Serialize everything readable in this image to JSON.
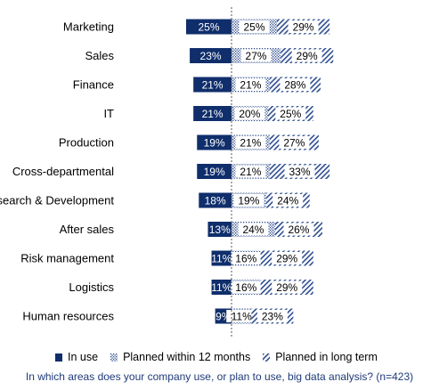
{
  "chart_data": {
    "type": "bar",
    "categories": [
      "Marketing",
      "Sales",
      "Finance",
      "IT",
      "Production",
      "Cross-departmental",
      "search & Development",
      "After sales",
      "Risk management",
      "Logistics",
      "Human resources"
    ],
    "series": [
      {
        "name": "In use",
        "values": [
          25,
          23,
          21,
          21,
          19,
          19,
          18,
          13,
          11,
          11,
          9
        ],
        "labels": [
          "25%",
          "23%",
          "21%",
          "21%",
          "19%",
          "19%",
          "18%",
          "13%",
          "11%",
          "11%",
          "9%"
        ]
      },
      {
        "name": "Planned within 12 months",
        "values": [
          25,
          27,
          21,
          20,
          21,
          21,
          19,
          24,
          16,
          16,
          11
        ],
        "labels": [
          "25%",
          "27%",
          "21%",
          "20%",
          "21%",
          "21%",
          "19%",
          "24%",
          "16%",
          "16%",
          "11%"
        ]
      },
      {
        "name": "Planned in long term",
        "values": [
          29,
          29,
          28,
          25,
          27,
          33,
          24,
          26,
          29,
          29,
          23
        ],
        "labels": [
          "29%",
          "29%",
          "28%",
          "25%",
          "27%",
          "33%",
          "24%",
          "26%",
          "29%",
          "29%",
          "23%"
        ]
      }
    ],
    "colors": {
      "in_use": "#0f2e6b",
      "planned_12": "#2e4d8f",
      "planned_long": "#2e4d8f"
    },
    "legend_position": "bottom"
  },
  "legend": {
    "in_use": "In use",
    "planned_12": "Planned within 12 months",
    "planned_long": "Planned in long term"
  },
  "question": "In which areas does your company use, or plan to use, big data analysis? (n=423)"
}
